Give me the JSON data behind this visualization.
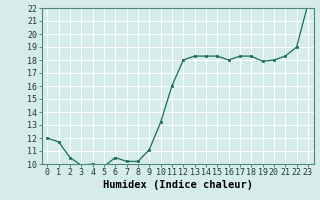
{
  "x": [
    0,
    1,
    2,
    3,
    4,
    5,
    6,
    7,
    8,
    9,
    10,
    11,
    12,
    13,
    14,
    15,
    16,
    17,
    18,
    19,
    20,
    21,
    22,
    23
  ],
  "y": [
    12,
    11.7,
    10.5,
    9.9,
    10.0,
    9.8,
    10.5,
    10.2,
    10.2,
    11.1,
    13.2,
    16.0,
    18.0,
    18.3,
    18.3,
    18.3,
    18.0,
    18.3,
    18.3,
    17.9,
    18.0,
    18.3,
    19.0,
    22.3
  ],
  "xlabel": "Humidex (Indice chaleur)",
  "ylim": [
    10,
    22
  ],
  "xlim": [
    -0.5,
    23.5
  ],
  "yticks": [
    10,
    11,
    12,
    13,
    14,
    15,
    16,
    17,
    18,
    19,
    20,
    21,
    22
  ],
  "xticks": [
    0,
    1,
    2,
    3,
    4,
    5,
    6,
    7,
    8,
    9,
    10,
    11,
    12,
    13,
    14,
    15,
    16,
    17,
    18,
    19,
    20,
    21,
    22,
    23
  ],
  "line_color": "#1a6b5a",
  "marker_color": "#1a6b5a",
  "bg_color": "#d5ecea",
  "grid_color": "#ffffff",
  "xlabel_fontsize": 7.5,
  "tick_fontsize": 6.0
}
